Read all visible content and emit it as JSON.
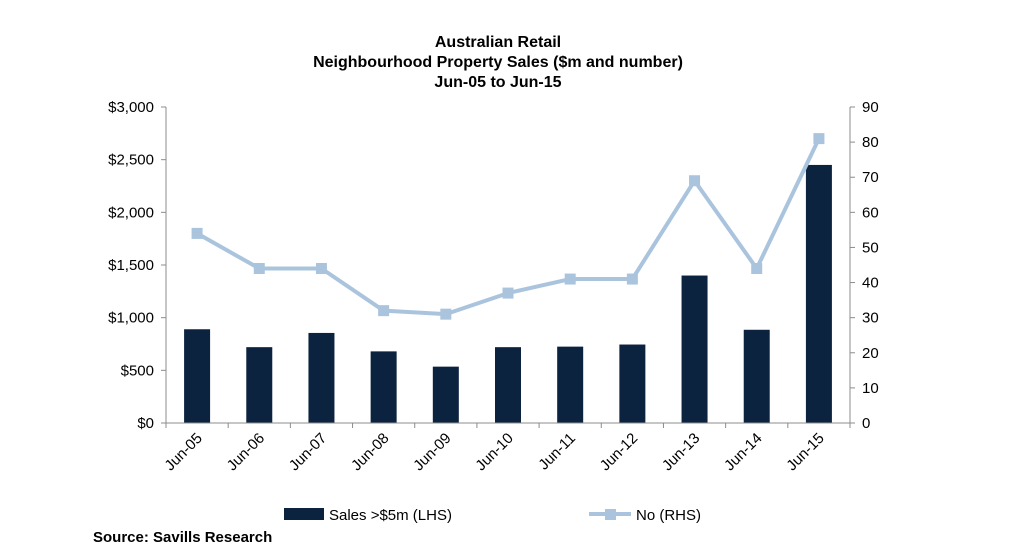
{
  "chart_data": {
    "type": "bar",
    "title_lines": [
      "Australian Retail",
      "Neighbourhood Property Sales ($m and number)",
      "Jun-05 to Jun-15"
    ],
    "categories": [
      "Jun-05",
      "Jun-06",
      "Jun-07",
      "Jun-08",
      "Jun-09",
      "Jun-10",
      "Jun-11",
      "Jun-12",
      "Jun-13",
      "Jun-14",
      "Jun-15"
    ],
    "series": [
      {
        "name": "Sales >$5m (LHS)",
        "kind": "bar",
        "axis": "left",
        "color": "#0c2340",
        "values": [
          890,
          720,
          855,
          680,
          535,
          720,
          725,
          745,
          1400,
          885,
          2450
        ]
      },
      {
        "name": "No (RHS)",
        "kind": "line",
        "axis": "right",
        "color": "#aac4de",
        "values": [
          54,
          44,
          44,
          32,
          31,
          37,
          41,
          41,
          69,
          44,
          81
        ]
      }
    ],
    "left_axis": {
      "ylim": [
        0,
        3000
      ],
      "ticks": [
        "$0",
        "$500",
        "$1,000",
        "$1,500",
        "$2,000",
        "$2,500",
        "$3,000"
      ]
    },
    "right_axis": {
      "ylim": [
        0,
        90
      ],
      "ticks": [
        "0",
        "10",
        "20",
        "30",
        "40",
        "50",
        "60",
        "70",
        "80",
        "90"
      ]
    },
    "grid": false,
    "legend_position": "bottom"
  },
  "source": "Source: Savills Research"
}
